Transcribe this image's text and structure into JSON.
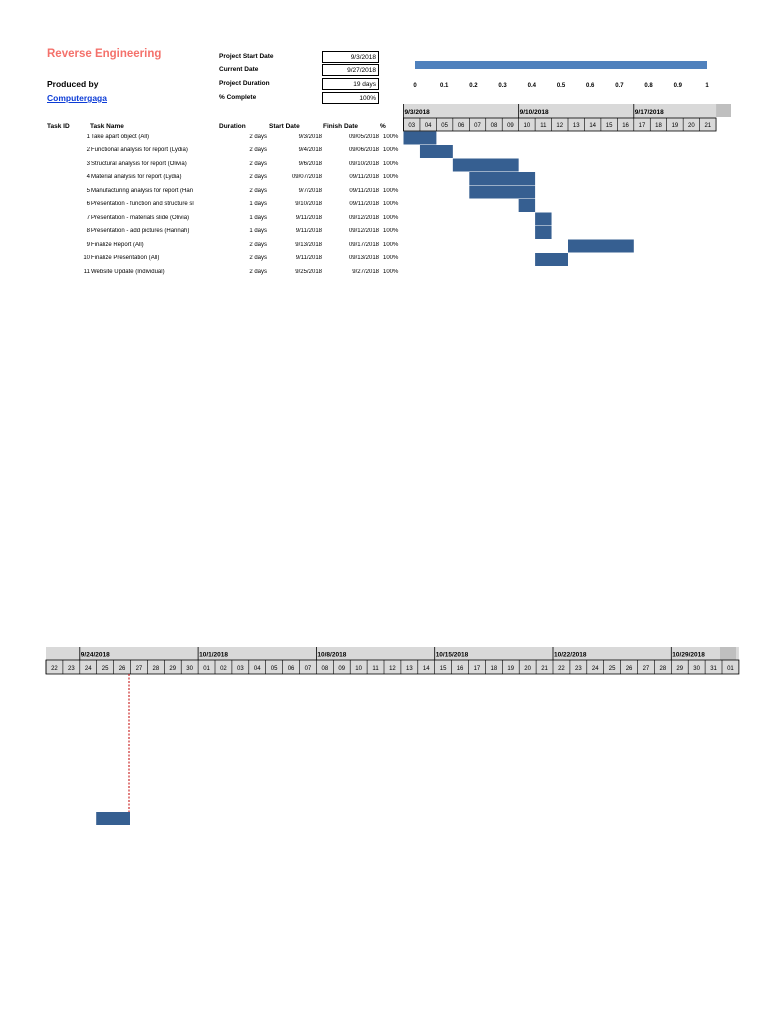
{
  "header": {
    "title": "Reverse Engineering",
    "produced_by": "Produced by",
    "author_link": "Computergaga"
  },
  "info": [
    {
      "label": "Project Start Date",
      "value": "9/3/2018"
    },
    {
      "label": "Current Date",
      "value": "9/27/2018"
    },
    {
      "label": "Project Duration",
      "value": "19 days"
    },
    {
      "label": "% Complete",
      "value": "100%"
    }
  ],
  "progress": {
    "fraction": 1.0,
    "color": "#4f81bd",
    "axis_ticks": [
      "0",
      "0.1",
      "0.2",
      "0.3",
      "0.4",
      "0.5",
      "0.6",
      "0.7",
      "0.8",
      "0.9",
      "1"
    ]
  },
  "table": {
    "headers": {
      "task_id": "Task ID",
      "task_name": "Task Name",
      "duration": "Duration",
      "start": "Start Date",
      "finish": "Finish Date",
      "pct": "%"
    },
    "rows": [
      {
        "id": "1",
        "name": "Take apart object (All)",
        "duration": "2 days",
        "start": "9/3/2018",
        "finish": "09/05/2018",
        "pct": "100%"
      },
      {
        "id": "2",
        "name": "Functional analysis for report (Lydia)",
        "duration": "2 days",
        "start": "9/4/2018",
        "finish": "09/06/2018",
        "pct": "100%"
      },
      {
        "id": "3",
        "name": "Structural analysis for report (Olivia)",
        "duration": "2 days",
        "start": "9/6/2018",
        "finish": "09/10/2018",
        "pct": "100%"
      },
      {
        "id": "4",
        "name": "Material analysis for report (Lydia)",
        "duration": "2 days",
        "start": "09/07/2018",
        "finish": "09/11/2018",
        "pct": "100%"
      },
      {
        "id": "5",
        "name": "Manufacturing analysis for report (Han",
        "duration": "2 days",
        "start": "9/7/2018",
        "finish": "09/11/2018",
        "pct": "100%"
      },
      {
        "id": "6",
        "name": "Presentation - function and structure sl",
        "duration": "1 days",
        "start": "9/10/2018",
        "finish": "09/11/2018",
        "pct": "100%"
      },
      {
        "id": "7",
        "name": "Presentation - materials slide (Olivia)",
        "duration": "1 days",
        "start": "9/11/2018",
        "finish": "09/12/2018",
        "pct": "100%"
      },
      {
        "id": "8",
        "name": "Presentation - add pictures (Hannah)",
        "duration": "1 days",
        "start": "9/11/2018",
        "finish": "09/12/2018",
        "pct": "100%"
      },
      {
        "id": "9",
        "name": "Finalize Report (All)",
        "duration": "2 days",
        "start": "9/13/2018",
        "finish": "09/17/2018",
        "pct": "100%"
      },
      {
        "id": "10",
        "name": "Finalize Presentation (All)",
        "duration": "2 days",
        "start": "9/11/2018",
        "finish": "09/13/2018",
        "pct": "100%"
      },
      {
        "id": "11",
        "name": "Website Update (Individual)",
        "duration": "2 days",
        "start": "9/25/2018",
        "finish": "9/27/2018",
        "pct": "100%"
      }
    ]
  },
  "gantt_top": {
    "weeks": [
      "9/3/2018",
      "9/10/2018",
      "9/17/2018"
    ],
    "days": [
      "03",
      "04",
      "05",
      "06",
      "07",
      "08",
      "09",
      "10",
      "11",
      "12",
      "13",
      "14",
      "15",
      "16",
      "17",
      "18",
      "19",
      "20",
      "21"
    ],
    "bars": [
      {
        "start": 0,
        "len": 2
      },
      {
        "start": 1,
        "len": 2
      },
      {
        "start": 3,
        "len": 4
      },
      {
        "start": 4,
        "len": 4
      },
      {
        "start": 4,
        "len": 4
      },
      {
        "start": 7,
        "len": 1
      },
      {
        "start": 8,
        "len": 1
      },
      {
        "start": 8,
        "len": 1
      },
      {
        "start": 10,
        "len": 4
      },
      {
        "start": 8,
        "len": 2
      }
    ],
    "bar_color": "#365f91"
  },
  "gantt_bottom": {
    "weeks": [
      "9/24/2018",
      "10/1/2018",
      "10/8/2018",
      "10/15/2018",
      "10/22/2018",
      "10/29/2018"
    ],
    "days": [
      "22",
      "23",
      "24",
      "25",
      "26",
      "27",
      "28",
      "29",
      "30",
      "01",
      "02",
      "03",
      "04",
      "05",
      "06",
      "07",
      "08",
      "09",
      "10",
      "11",
      "12",
      "13",
      "14",
      "15",
      "16",
      "17",
      "18",
      "19",
      "20",
      "21",
      "22",
      "23",
      "24",
      "25",
      "26",
      "27",
      "28",
      "29",
      "30",
      "31",
      "01"
    ],
    "bar": {
      "start": 3,
      "len": 2
    },
    "today_index": 5,
    "bar_color": "#365f91",
    "today_color": "#c00000"
  }
}
